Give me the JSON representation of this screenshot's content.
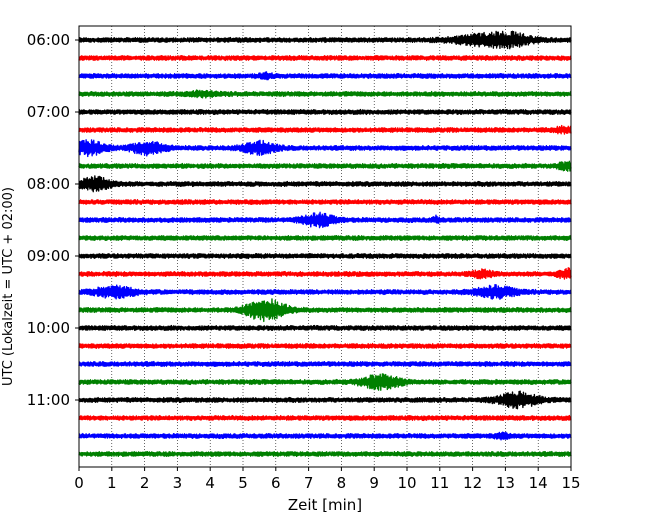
{
  "chart_data": {
    "type": "line",
    "title": "",
    "xlabel": "Zeit  [min]",
    "ylabel": "UTC (Lokalzeit = UTC + 02:00)",
    "xlim": [
      0,
      15
    ],
    "x_ticks": [
      0,
      1,
      2,
      3,
      4,
      5,
      6,
      7,
      8,
      9,
      10,
      11,
      12,
      13,
      14,
      15
    ],
    "x_tick_labels": [
      "0",
      "1",
      "2",
      "3",
      "4",
      "5",
      "6",
      "7",
      "8",
      "9",
      "10",
      "11",
      "12",
      "13",
      "14",
      "15"
    ],
    "x_grid": true,
    "y_tick_labels": [
      {
        "row": 0,
        "label": "06:00"
      },
      {
        "row": 4,
        "label": "07:00"
      },
      {
        "row": 8,
        "label": "08:00"
      },
      {
        "row": 12,
        "label": "09:00"
      },
      {
        "row": 16,
        "label": "10:00"
      },
      {
        "row": 20,
        "label": "11:00"
      }
    ],
    "row_interval_minutes": 15,
    "color_cycle": [
      "#000000",
      "#ff0000",
      "#0000ff",
      "#008000"
    ],
    "traces": [
      {
        "row": 0,
        "start": "06:00",
        "color": "#000000",
        "events": [
          {
            "t": 12.2,
            "amp": 0.45,
            "width": 0.9
          },
          {
            "t": 13.1,
            "amp": 0.6,
            "width": 0.7
          }
        ]
      },
      {
        "row": 1,
        "start": "06:15",
        "color": "#ff0000",
        "events": []
      },
      {
        "row": 2,
        "start": "06:30",
        "color": "#0000ff",
        "events": [
          {
            "t": 5.7,
            "amp": 0.3,
            "width": 0.2
          }
        ]
      },
      {
        "row": 3,
        "start": "06:45",
        "color": "#008000",
        "events": [
          {
            "t": 3.8,
            "amp": 0.2,
            "width": 0.5
          }
        ]
      },
      {
        "row": 4,
        "start": "07:00",
        "color": "#000000",
        "events": []
      },
      {
        "row": 5,
        "start": "07:15",
        "color": "#ff0000",
        "events": [
          {
            "t": 14.8,
            "amp": 0.25,
            "width": 0.3
          }
        ]
      },
      {
        "row": 6,
        "start": "07:30",
        "color": "#0000ff",
        "events": [
          {
            "t": 0.3,
            "amp": 0.7,
            "width": 0.5
          },
          {
            "t": 2.1,
            "amp": 0.65,
            "width": 0.5
          },
          {
            "t": 5.5,
            "amp": 0.65,
            "width": 0.5
          }
        ]
      },
      {
        "row": 7,
        "start": "07:45",
        "color": "#008000",
        "events": [
          {
            "t": 14.9,
            "amp": 0.35,
            "width": 0.3
          }
        ]
      },
      {
        "row": 8,
        "start": "08:00",
        "color": "#000000",
        "events": [
          {
            "t": 0.5,
            "amp": 0.65,
            "width": 0.5
          }
        ]
      },
      {
        "row": 9,
        "start": "08:15",
        "color": "#ff0000",
        "events": []
      },
      {
        "row": 10,
        "start": "08:30",
        "color": "#0000ff",
        "events": [
          {
            "t": 7.3,
            "amp": 0.65,
            "width": 0.5
          },
          {
            "t": 10.9,
            "amp": 0.3,
            "width": 0.1
          }
        ]
      },
      {
        "row": 11,
        "start": "08:45",
        "color": "#008000",
        "events": []
      },
      {
        "row": 12,
        "start": "09:00",
        "color": "#000000",
        "events": []
      },
      {
        "row": 13,
        "start": "09:15",
        "color": "#ff0000",
        "events": [
          {
            "t": 12.3,
            "amp": 0.35,
            "width": 0.3
          },
          {
            "t": 14.9,
            "amp": 0.45,
            "width": 0.3
          }
        ]
      },
      {
        "row": 14,
        "start": "09:30",
        "color": "#0000ff",
        "events": [
          {
            "t": 1.1,
            "amp": 0.55,
            "width": 0.6
          },
          {
            "t": 12.7,
            "amp": 0.6,
            "width": 0.6
          }
        ]
      },
      {
        "row": 15,
        "start": "09:45",
        "color": "#008000",
        "events": [
          {
            "t": 5.7,
            "amp": 1.1,
            "width": 0.6
          }
        ]
      },
      {
        "row": 16,
        "start": "10:00",
        "color": "#000000",
        "events": []
      },
      {
        "row": 17,
        "start": "10:15",
        "color": "#ff0000",
        "events": []
      },
      {
        "row": 18,
        "start": "10:30",
        "color": "#0000ff",
        "events": []
      },
      {
        "row": 19,
        "start": "10:45",
        "color": "#008000",
        "events": [
          {
            "t": 9.2,
            "amp": 0.7,
            "width": 0.6
          }
        ]
      },
      {
        "row": 20,
        "start": "11:00",
        "color": "#000000",
        "events": [
          {
            "t": 13.4,
            "amp": 0.75,
            "width": 0.6
          }
        ]
      },
      {
        "row": 21,
        "start": "11:15",
        "color": "#ff0000",
        "events": []
      },
      {
        "row": 22,
        "start": "11:30",
        "color": "#0000ff",
        "events": [
          {
            "t": 12.9,
            "amp": 0.25,
            "width": 0.2
          }
        ]
      },
      {
        "row": 23,
        "start": "11:45",
        "color": "#008000",
        "events": []
      }
    ]
  }
}
